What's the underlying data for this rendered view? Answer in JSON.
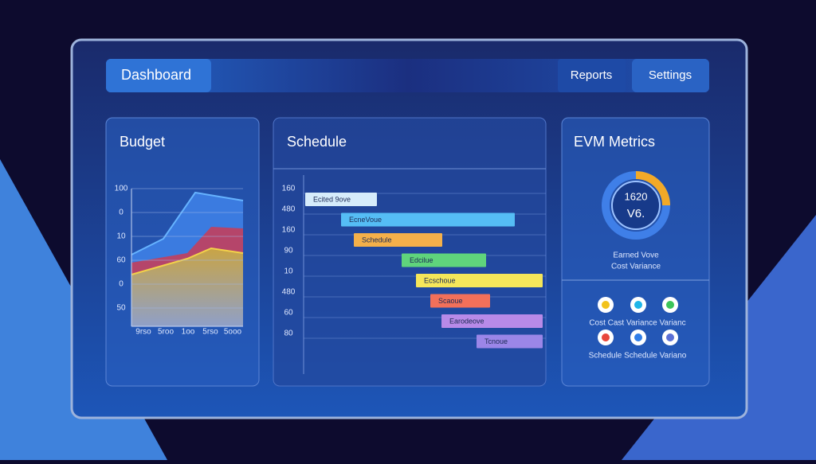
{
  "nav": {
    "title": "Dashboard",
    "items": [
      "Reports",
      "Settings"
    ]
  },
  "budget": {
    "title": "Budget",
    "y_labels": [
      "100",
      "0",
      "10",
      "60",
      "0",
      "50"
    ],
    "x_labels": [
      "9rso",
      "5roo",
      "1oo",
      "5rso",
      "5ooo"
    ]
  },
  "schedule": {
    "title": "Schedule",
    "row_labels": [
      "160",
      "480",
      "160",
      "90",
      "10",
      "480",
      "60",
      "80"
    ],
    "tasks": [
      "Ecited 9ove",
      "EcneVoue",
      "Schedule",
      "Edcilue",
      "Ecschoue",
      "Scaoue",
      "Earodeove",
      "Tcnoue"
    ]
  },
  "evm": {
    "title": "EVM Metrics",
    "gauge_value": "1620",
    "gauge_sub": "V6.",
    "gauge_caption": [
      "Earned Vove",
      "Cost Variance"
    ],
    "legend": [
      "Cost Cast Variance Varianc",
      "Schedule Schedule Variano"
    ]
  }
}
